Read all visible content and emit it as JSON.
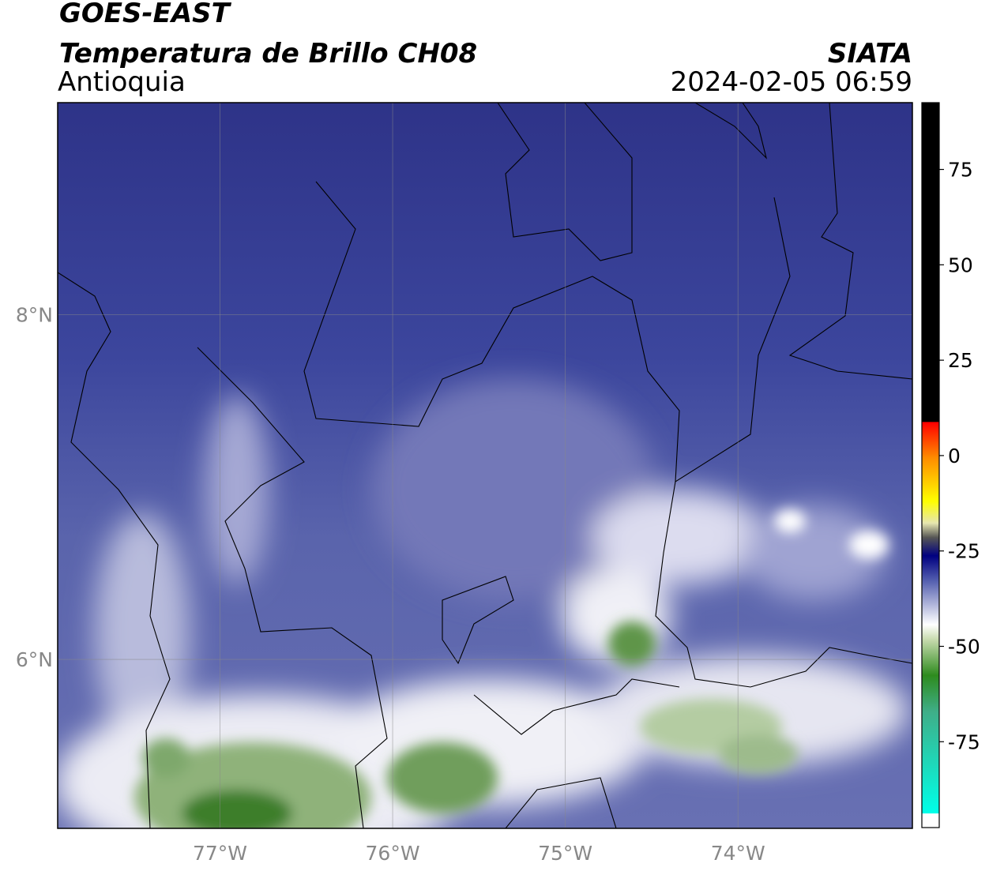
{
  "header": {
    "title": "GOES-EAST",
    "subtitle": "Temperatura de Brillo CH08",
    "region": "Antioquia",
    "source": "SIATA",
    "timestamp": "2024-02-05 06:59"
  },
  "map": {
    "lon_range": [
      -77.94,
      -72.99
    ],
    "lat_range": [
      5.02,
      9.23
    ],
    "grid": true,
    "xticks": [
      {
        "value": -77,
        "label": "77°W"
      },
      {
        "value": -76,
        "label": "76°W"
      },
      {
        "value": -75,
        "label": "75°W"
      },
      {
        "value": -74,
        "label": "74°W"
      }
    ],
    "yticks": [
      {
        "value": 8,
        "label": "8°N"
      },
      {
        "value": 6,
        "label": "6°N"
      }
    ]
  },
  "colorbar": {
    "range": [
      -97.5,
      92.5
    ],
    "ticks": [
      75,
      50,
      25,
      0,
      -25,
      -50,
      -75
    ]
  }
}
